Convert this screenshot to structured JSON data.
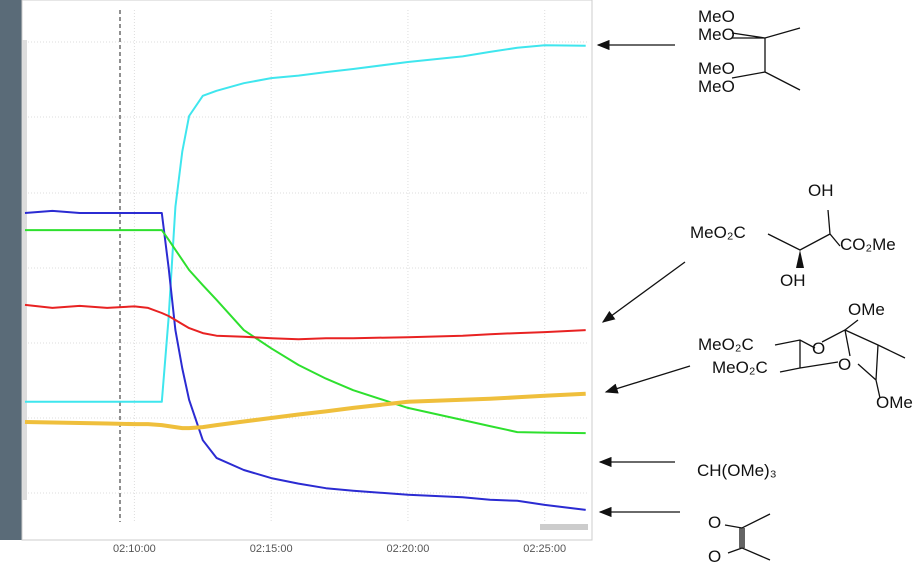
{
  "chart_data": {
    "type": "line",
    "x": [
      "02:06:00",
      "02:07:00",
      "02:08:00",
      "02:09:00",
      "02:10:00",
      "02:10:30",
      "02:11:00",
      "02:11:15",
      "02:11:30",
      "02:11:45",
      "02:12:00",
      "02:12:30",
      "02:13:00",
      "02:14:00",
      "02:15:00",
      "02:16:00",
      "02:17:00",
      "02:18:00",
      "02:20:00",
      "02:22:00",
      "02:23:00",
      "02:24:00",
      "02:25:00",
      "02:26:30"
    ],
    "xlim": [
      "02:06:00",
      "02:26:35"
    ],
    "xticks": [
      "02:10:00",
      "02:15:00",
      "02:20:00",
      "02:25:00"
    ],
    "ylim": [
      0,
      100
    ],
    "grid": true,
    "series": [
      {
        "color": "#3fe6ee",
        "values": [
          23.4,
          23.4,
          23.4,
          23.4,
          23.4,
          23.4,
          23.4,
          40,
          62,
          73,
          80,
          84,
          85,
          86.5,
          87.5,
          88,
          88.7,
          89.3,
          90.7,
          91.8,
          92.7,
          93.5,
          94,
          93.9
        ]
      },
      {
        "color": "#2b2bd2",
        "values": [
          60.8,
          61.2,
          60.8,
          60.8,
          60.8,
          60.8,
          60.8,
          50,
          37.6,
          30,
          23.8,
          15.8,
          12.3,
          9.9,
          8.3,
          7.2,
          6.3,
          5.8,
          5,
          4.5,
          4,
          3.8,
          3,
          2
        ]
      },
      {
        "color": "#2ee02e",
        "values": [
          57.4,
          57.4,
          57.4,
          57.4,
          57.4,
          57.4,
          57.4,
          55.5,
          53.5,
          51.5,
          49.5,
          46.5,
          43.6,
          37.6,
          34,
          30.7,
          28,
          25.7,
          22.2,
          19.8,
          18.6,
          17.4,
          17.3,
          17.2
        ]
      },
      {
        "color": "#e82222",
        "values": [
          42.6,
          42,
          42.4,
          42,
          42.3,
          42,
          41,
          40.4,
          39.6,
          38.8,
          38,
          37,
          36.5,
          36.3,
          36,
          35.8,
          36,
          36,
          36.2,
          36.5,
          36.8,
          37,
          37.2,
          37.6
        ]
      },
      {
        "color": "#efbf3c",
        "values": [
          19.4,
          19.3,
          19.2,
          19.1,
          19,
          19,
          18.8,
          18.6,
          18.4,
          18.2,
          18.2,
          18.4,
          18.8,
          19.5,
          20.2,
          20.9,
          21.5,
          22.2,
          23.4,
          23.8,
          24,
          24.3,
          24.6,
          25
        ]
      }
    ],
    "annotations": [
      "MeO",
      "MeO",
      "MeO",
      "MeO",
      "OH",
      "MeO₂C",
      "CO₂Me",
      "OH",
      "OMe",
      "MeO₂C",
      "MeO₂C",
      "O",
      "O",
      "OMe",
      "CH(OMe)₃",
      "O",
      "O"
    ]
  }
}
